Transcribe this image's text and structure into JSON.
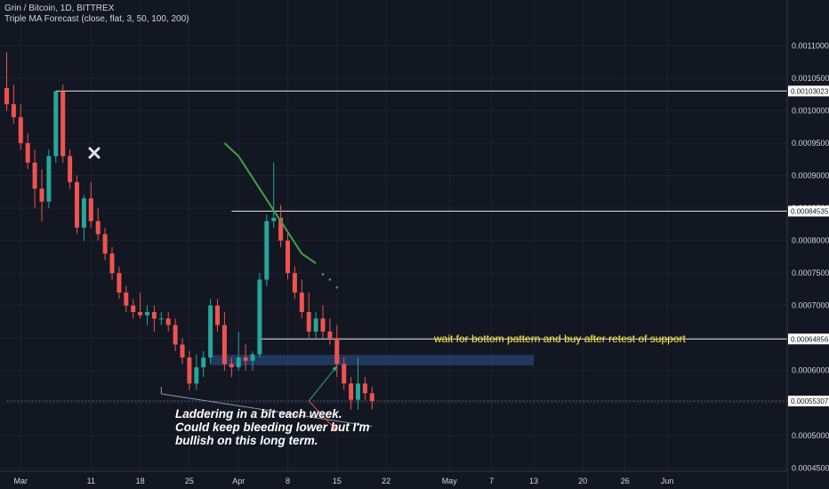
{
  "header": {
    "symbol_line": "Grin / Bitcoin, 1D, BITTREX",
    "indicator_line": "Triple MA Forecast (close, flat, 3, 50, 100, 200)"
  },
  "colors": {
    "background": "#131722",
    "up": "#26a69a",
    "down": "#ef5350",
    "grid": "#1e2230",
    "axis_text": "#d1d4dc",
    "zone": "#2a4a7f",
    "forecast": "#43a047",
    "label_yellow": "#ffeb3b"
  },
  "chart_data": {
    "type": "candlestick",
    "y_axis": {
      "min": 0.000445,
      "max": 0.001143,
      "ticks": [
        "0.00045000",
        "0.00050000",
        "0.00055000",
        "0.00060000",
        "0.00065000",
        "0.00070000",
        "0.00075000",
        "0.00080000",
        "0.00085000",
        "0.00090000",
        "0.00095000",
        "0.00100000",
        "0.00105000",
        "0.00110000"
      ],
      "tick_values": [
        0.00045,
        0.0005,
        0.00055,
        0.0006,
        0.00065,
        0.0007,
        0.00075,
        0.0008,
        0.00085,
        0.0009,
        0.00095,
        0.001,
        0.00105,
        0.0011
      ]
    },
    "x_axis": {
      "first_date": "2019-02-27",
      "ticks": [
        {
          "label": "Mar",
          "date": "2019-03-01"
        },
        {
          "label": "11",
          "date": "2019-03-11"
        },
        {
          "label": "18",
          "date": "2019-03-18"
        },
        {
          "label": "25",
          "date": "2019-03-25"
        },
        {
          "label": "Apr",
          "date": "2019-04-01"
        },
        {
          "label": "8",
          "date": "2019-04-08"
        },
        {
          "label": "15",
          "date": "2019-04-15"
        },
        {
          "label": "22",
          "date": "2019-04-22"
        },
        {
          "label": "May",
          "date": "2019-05-01"
        },
        {
          "label": "7",
          "date": "2019-05-07"
        },
        {
          "label": "13",
          "date": "2019-05-13"
        },
        {
          "label": "20",
          "date": "2019-05-20"
        },
        {
          "label": "26",
          "date": "2019-05-26"
        },
        {
          "label": "Jun",
          "date": "2019-06-01"
        }
      ]
    },
    "candles": [
      {
        "o": 0.001035,
        "h": 0.00109,
        "l": 0.001,
        "c": 0.00101
      },
      {
        "o": 0.00101,
        "h": 0.00104,
        "l": 0.00098,
        "c": 0.00099
      },
      {
        "o": 0.00099,
        "h": 0.00101,
        "l": 0.00094,
        "c": 0.00095
      },
      {
        "o": 0.00095,
        "h": 0.000965,
        "l": 0.00091,
        "c": 0.00092
      },
      {
        "o": 0.00092,
        "h": 0.00094,
        "l": 0.00085,
        "c": 0.00088
      },
      {
        "o": 0.00088,
        "h": 0.00091,
        "l": 0.00083,
        "c": 0.00086
      },
      {
        "o": 0.00086,
        "h": 0.00094,
        "l": 0.00085,
        "c": 0.00093
      },
      {
        "o": 0.00093,
        "h": 0.00103,
        "l": 0.00092,
        "c": 0.00103
      },
      {
        "o": 0.00103,
        "h": 0.00104,
        "l": 0.00092,
        "c": 0.00093
      },
      {
        "o": 0.00093,
        "h": 0.00094,
        "l": 0.00088,
        "c": 0.00089
      },
      {
        "o": 0.00089,
        "h": 0.0009,
        "l": 0.00081,
        "c": 0.00082
      },
      {
        "o": 0.00082,
        "h": 0.00087,
        "l": 0.0008,
        "c": 0.000865
      },
      {
        "o": 0.000865,
        "h": 0.00089,
        "l": 0.00082,
        "c": 0.00083
      },
      {
        "o": 0.00083,
        "h": 0.00085,
        "l": 0.0008,
        "c": 0.00081
      },
      {
        "o": 0.00081,
        "h": 0.00082,
        "l": 0.00077,
        "c": 0.00078
      },
      {
        "o": 0.00078,
        "h": 0.00079,
        "l": 0.00074,
        "c": 0.00075
      },
      {
        "o": 0.00075,
        "h": 0.00076,
        "l": 0.00071,
        "c": 0.00072
      },
      {
        "o": 0.00072,
        "h": 0.00073,
        "l": 0.00069,
        "c": 0.0007
      },
      {
        "o": 0.0007,
        "h": 0.00071,
        "l": 0.00068,
        "c": 0.00069
      },
      {
        "o": 0.00069,
        "h": 0.00072,
        "l": 0.00068,
        "c": 0.000685
      },
      {
        "o": 0.000685,
        "h": 0.0007,
        "l": 0.00067,
        "c": 0.00069
      },
      {
        "o": 0.00069,
        "h": 0.0007,
        "l": 0.00066,
        "c": 0.00068
      },
      {
        "o": 0.00068,
        "h": 0.00069,
        "l": 0.00067,
        "c": 0.00068
      },
      {
        "o": 0.00068,
        "h": 0.00069,
        "l": 0.00066,
        "c": 0.00067
      },
      {
        "o": 0.00067,
        "h": 0.00068,
        "l": 0.00063,
        "c": 0.00064
      },
      {
        "o": 0.00064,
        "h": 0.00065,
        "l": 0.00061,
        "c": 0.00062
      },
      {
        "o": 0.00062,
        "h": 0.00063,
        "l": 0.00057,
        "c": 0.00058
      },
      {
        "o": 0.00058,
        "h": 0.000625,
        "l": 0.00057,
        "c": 0.000605
      },
      {
        "o": 0.000605,
        "h": 0.00063,
        "l": 0.00059,
        "c": 0.00062
      },
      {
        "o": 0.00062,
        "h": 0.00071,
        "l": 0.00061,
        "c": 0.0007
      },
      {
        "o": 0.0007,
        "h": 0.00071,
        "l": 0.00066,
        "c": 0.00067
      },
      {
        "o": 0.00067,
        "h": 0.00069,
        "l": 0.0006,
        "c": 0.00061
      },
      {
        "o": 0.00061,
        "h": 0.00062,
        "l": 0.00059,
        "c": 0.000605
      },
      {
        "o": 0.000605,
        "h": 0.00066,
        "l": 0.0006,
        "c": 0.00062
      },
      {
        "o": 0.00062,
        "h": 0.00064,
        "l": 0.0006,
        "c": 0.000615
      },
      {
        "o": 0.000615,
        "h": 0.00063,
        "l": 0.0006,
        "c": 0.000625
      },
      {
        "o": 0.000625,
        "h": 0.00075,
        "l": 0.00062,
        "c": 0.00074
      },
      {
        "o": 0.00074,
        "h": 0.00084,
        "l": 0.00073,
        "c": 0.00083
      },
      {
        "o": 0.00083,
        "h": 0.00092,
        "l": 0.00082,
        "c": 0.000835
      },
      {
        "o": 0.000835,
        "h": 0.000855,
        "l": 0.00079,
        "c": 0.0008
      },
      {
        "o": 0.0008,
        "h": 0.00081,
        "l": 0.00074,
        "c": 0.00075
      },
      {
        "o": 0.00075,
        "h": 0.00076,
        "l": 0.00071,
        "c": 0.00072
      },
      {
        "o": 0.00072,
        "h": 0.00074,
        "l": 0.00068,
        "c": 0.00069
      },
      {
        "o": 0.00069,
        "h": 0.00072,
        "l": 0.00065,
        "c": 0.00066
      },
      {
        "o": 0.00066,
        "h": 0.00069,
        "l": 0.00065,
        "c": 0.00068
      },
      {
        "o": 0.00068,
        "h": 0.0007,
        "l": 0.00065,
        "c": 0.00066
      },
      {
        "o": 0.00066,
        "h": 0.00068,
        "l": 0.00064,
        "c": 0.00065
      },
      {
        "o": 0.00065,
        "h": 0.00067,
        "l": 0.00059,
        "c": 0.00061
      },
      {
        "o": 0.00061,
        "h": 0.00062,
        "l": 0.00057,
        "c": 0.00058
      },
      {
        "o": 0.00058,
        "h": 0.00059,
        "l": 0.00054,
        "c": 0.000555
      },
      {
        "o": 0.000555,
        "h": 0.00062,
        "l": 0.00054,
        "c": 0.00058
      },
      {
        "o": 0.00058,
        "h": 0.00059,
        "l": 0.000555,
        "c": 0.000565
      },
      {
        "o": 0.000565,
        "h": 0.000575,
        "l": 0.00054,
        "c": 0.000553
      }
    ],
    "price_labels": [
      {
        "label": "0.00103023",
        "value": 0.00103023,
        "from_date": "2019-03-06"
      },
      {
        "label": "0.00084535",
        "value": 0.00084535,
        "from_date": "2019-03-31"
      },
      {
        "label": "0.00064856",
        "value": 0.00064856,
        "from_date": "2019-04-04"
      },
      {
        "label": "0.00055307",
        "value": 0.00055307,
        "from_date": "2019-02-27"
      }
    ],
    "support_zone": {
      "top": 0.000624,
      "bottom": 0.000608,
      "from_date": "2019-03-28",
      "to_date": "2019-05-13"
    },
    "trendline": [
      {
        "date": "2019-03-21",
        "value": 0.000564
      },
      {
        "date": "2019-04-20",
        "value": 0.000514
      }
    ],
    "forecast_ma": [
      {
        "date": "2019-03-30",
        "value": 0.00095
      },
      {
        "date": "2019-04-01",
        "value": 0.00093
      },
      {
        "date": "2019-04-04",
        "value": 0.00088
      },
      {
        "date": "2019-04-07",
        "value": 0.00083
      },
      {
        "date": "2019-04-10",
        "value": 0.00078
      },
      {
        "date": "2019-04-12",
        "value": 0.000765
      }
    ],
    "forecast_dots": [
      {
        "date": "2019-04-13",
        "value": 0.000748
      },
      {
        "date": "2019-04-14",
        "value": 0.00074
      },
      {
        "date": "2019-04-15",
        "value": 0.000728
      }
    ],
    "arrows": [
      {
        "color": "#26a69a",
        "from": {
          "date": "2019-04-11",
          "value": 0.000553
        },
        "to": {
          "date": "2019-04-15",
          "value": 0.000607
        }
      },
      {
        "color": "#ef5350",
        "from": {
          "date": "2019-04-11",
          "value": 0.000553
        },
        "to": {
          "date": "2019-04-15",
          "value": 0.000507
        }
      }
    ],
    "annotations": {
      "support_note": "wait for bottom pattern and buy after retest of support",
      "long_term_note": [
        "Laddering in a bit each week.",
        "Could keep bleeding lower but I'm",
        "bullish on this long term."
      ]
    }
  }
}
